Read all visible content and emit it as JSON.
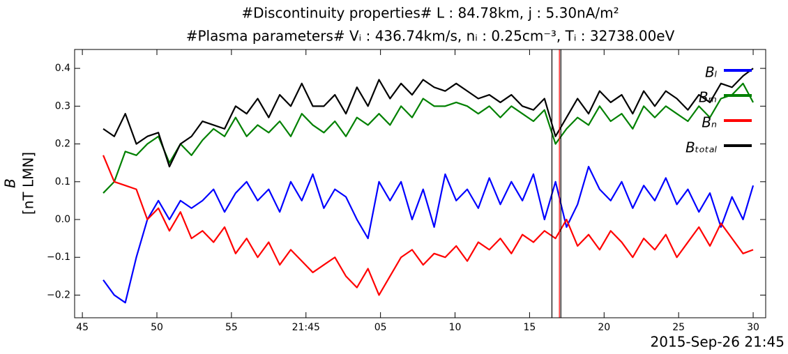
{
  "chart_data": {
    "type": "line",
    "title": [
      "#Discontinuity properties# L : 84.78km, j : 5.30nA/m²",
      "#Plasma parameters# Vᵢ : 436.74km/s, nᵢ : 0.25cm⁻³, Tᵢ : 32738.00eV"
    ],
    "ylabel": [
      "B",
      "[nT LMN]"
    ],
    "xlabel": "2015-Sep-26 21:45",
    "x": [
      46.4,
      47.14,
      47.88,
      48.62,
      49.36,
      50.1,
      50.84,
      51.58,
      52.32,
      53.06,
      53.8,
      54.54,
      55.28,
      56.02,
      56.76,
      57.5,
      58.24,
      58.98,
      59.72,
      60.46,
      61.2,
      61.94,
      62.68,
      63.42,
      64.16,
      64.9,
      65.64,
      66.38,
      67.12,
      67.86,
      68.6,
      69.34,
      70.08,
      70.82,
      71.56,
      72.3,
      73.04,
      73.78,
      74.52,
      75.26,
      76.0,
      76.74,
      77.48,
      78.22,
      78.96,
      79.7,
      80.44,
      81.18,
      81.92,
      82.66,
      83.4,
      84.14,
      84.88,
      85.62,
      86.36,
      87.1,
      87.84,
      88.58,
      89.32,
      90.0
    ],
    "series": [
      {
        "name": "Bₗ",
        "color": "#0000ff",
        "values": [
          -0.16,
          -0.2,
          -0.22,
          -0.1,
          0.0,
          0.05,
          0.0,
          0.05,
          0.03,
          0.05,
          0.08,
          0.02,
          0.07,
          0.1,
          0.05,
          0.08,
          0.02,
          0.1,
          0.05,
          0.12,
          0.03,
          0.08,
          0.06,
          0.0,
          -0.05,
          0.1,
          0.05,
          0.1,
          0.0,
          0.08,
          -0.02,
          0.12,
          0.05,
          0.08,
          0.03,
          0.11,
          0.04,
          0.1,
          0.05,
          0.12,
          0.0,
          0.1,
          -0.02,
          0.04,
          0.14,
          0.08,
          0.05,
          0.1,
          0.03,
          0.09,
          0.05,
          0.11,
          0.04,
          0.08,
          0.02,
          0.07,
          -0.02,
          0.06,
          0.0,
          0.09
        ]
      },
      {
        "name": "Bₘ",
        "color": "#008000",
        "values": [
          0.07,
          0.1,
          0.18,
          0.17,
          0.2,
          0.22,
          0.15,
          0.2,
          0.17,
          0.21,
          0.24,
          0.22,
          0.27,
          0.22,
          0.25,
          0.23,
          0.26,
          0.22,
          0.28,
          0.25,
          0.23,
          0.26,
          0.22,
          0.27,
          0.25,
          0.28,
          0.25,
          0.3,
          0.27,
          0.32,
          0.3,
          0.3,
          0.31,
          0.3,
          0.28,
          0.3,
          0.27,
          0.3,
          0.28,
          0.26,
          0.29,
          0.2,
          0.24,
          0.27,
          0.25,
          0.3,
          0.26,
          0.28,
          0.24,
          0.3,
          0.27,
          0.3,
          0.28,
          0.26,
          0.3,
          0.27,
          0.32,
          0.33,
          0.36,
          0.31
        ]
      },
      {
        "name": "Bₙ",
        "color": "#ff0000",
        "values": [
          0.17,
          0.1,
          0.09,
          0.08,
          0.0,
          0.03,
          -0.03,
          0.02,
          -0.05,
          -0.03,
          -0.06,
          -0.02,
          -0.09,
          -0.05,
          -0.1,
          -0.06,
          -0.12,
          -0.08,
          -0.11,
          -0.14,
          -0.12,
          -0.1,
          -0.15,
          -0.18,
          -0.13,
          -0.2,
          -0.15,
          -0.1,
          -0.08,
          -0.12,
          -0.09,
          -0.1,
          -0.07,
          -0.11,
          -0.06,
          -0.08,
          -0.05,
          -0.09,
          -0.04,
          -0.06,
          -0.03,
          -0.05,
          0.0,
          -0.07,
          -0.04,
          -0.08,
          -0.03,
          -0.06,
          -0.1,
          -0.05,
          -0.08,
          -0.04,
          -0.1,
          -0.06,
          -0.02,
          -0.07,
          -0.01,
          -0.05,
          -0.09,
          -0.08
        ]
      },
      {
        "name": "Bₜₒₜₐₗ",
        "color": "#000000",
        "values": [
          0.24,
          0.22,
          0.28,
          0.2,
          0.22,
          0.23,
          0.14,
          0.2,
          0.22,
          0.26,
          0.25,
          0.24,
          0.3,
          0.28,
          0.32,
          0.27,
          0.33,
          0.3,
          0.36,
          0.3,
          0.3,
          0.33,
          0.28,
          0.35,
          0.3,
          0.37,
          0.32,
          0.36,
          0.33,
          0.37,
          0.35,
          0.34,
          0.36,
          0.34,
          0.32,
          0.33,
          0.31,
          0.33,
          0.3,
          0.29,
          0.32,
          0.22,
          0.27,
          0.32,
          0.28,
          0.34,
          0.31,
          0.33,
          0.28,
          0.34,
          0.3,
          0.34,
          0.32,
          0.29,
          0.33,
          0.31,
          0.36,
          0.35,
          0.38,
          0.4
        ]
      }
    ],
    "vlines": [
      {
        "x": 76.5,
        "color": "#000000"
      },
      {
        "x": 77.0,
        "color": "#ff0000"
      },
      {
        "x": 77.1,
        "color": "#000000"
      }
    ],
    "xlim": [
      44.48,
      90.84
    ],
    "ylim": [
      -0.26,
      0.45
    ],
    "xticks": [
      {
        "value": 45,
        "label": "45"
      },
      {
        "value": 50,
        "label": "50"
      },
      {
        "value": 55,
        "label": "55"
      },
      {
        "value": 60,
        "label": "21:45"
      },
      {
        "value": 65,
        "label": "05"
      },
      {
        "value": 70,
        "label": "10"
      },
      {
        "value": 75,
        "label": "15"
      },
      {
        "value": 80,
        "label": "20"
      },
      {
        "value": 85,
        "label": "25"
      },
      {
        "value": 90,
        "label": "30"
      }
    ],
    "yticks": [
      {
        "value": -0.2,
        "label": "−0.2"
      },
      {
        "value": -0.1,
        "label": "−0.1"
      },
      {
        "value": 0.0,
        "label": "0.0"
      },
      {
        "value": 0.1,
        "label": "0.1"
      },
      {
        "value": 0.2,
        "label": "0.2"
      },
      {
        "value": 0.3,
        "label": "0.3"
      },
      {
        "value": 0.4,
        "label": "0.4"
      }
    ],
    "legend": "upper right"
  }
}
